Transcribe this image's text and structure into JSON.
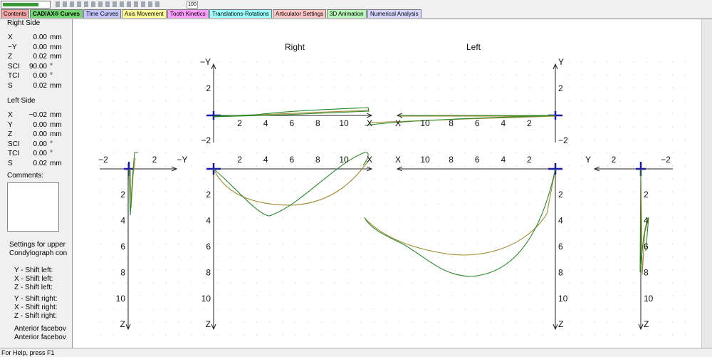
{
  "toolbar": {
    "zoom": "100"
  },
  "tabs": [
    "Contents",
    "CADIAX® Curves",
    "Time Curves",
    "Axis Movement",
    "Tooth Kinetics",
    "Translations-Rotations",
    "Articulator Settings",
    "3D Animation",
    "Numerical Analysis"
  ],
  "right_side": {
    "title": "Right Side",
    "rows": [
      [
        "X",
        "0.00",
        "mm"
      ],
      [
        "−Y",
        "0.00",
        "mm"
      ],
      [
        "Z",
        "0.02",
        "mm"
      ],
      [
        "SCI",
        "90.00",
        "°"
      ],
      [
        "TCI",
        "0.00",
        "°"
      ],
      [
        "S",
        "0.02",
        "mm"
      ]
    ]
  },
  "left_side": {
    "title": "Left Side",
    "rows": [
      [
        "X",
        "−0.02",
        "mm"
      ],
      [
        "Y",
        "0.00",
        "mm"
      ],
      [
        "Z",
        "0.00",
        "mm"
      ],
      [
        "SCI",
        "0.00",
        "°"
      ],
      [
        "TCI",
        "0.00",
        "°"
      ],
      [
        "S",
        "0.02",
        "mm"
      ]
    ]
  },
  "comments_label": "Comments:",
  "settings": {
    "heading": [
      "Settings for upper",
      "Condylograph con"
    ],
    "lines": [
      "Y - Shift left:",
      "X - Shift left:",
      "Z - Shift left:",
      "Y - Shift right:",
      "X - Shift right:",
      "Z - Shift right:",
      "Anterior facebov",
      "Anterior facebov"
    ]
  },
  "plots": {
    "titles": [
      "Right",
      "Left"
    ],
    "right_top": {
      "x_ticks": [
        "2",
        "4",
        "6",
        "8",
        "10"
      ],
      "x_label": "X",
      "y_ticks": [
        "2",
        "−2"
      ],
      "y_label": "−Y"
    },
    "left_top": {
      "x_ticks": [
        "2",
        "4",
        "6",
        "8",
        "10"
      ],
      "x_label": "X",
      "y_ticks": [
        "2",
        "−2"
      ],
      "y_label": "Y"
    },
    "right_main": {
      "x_ticks": [
        "2",
        "4",
        "6",
        "8",
        "10"
      ],
      "x_label": "X",
      "y_ticks": [
        "2",
        "4",
        "6",
        "8",
        "10"
      ],
      "y_label": "Z"
    },
    "left_main": {
      "x_ticks": [
        "2",
        "4",
        "6",
        "8",
        "10"
      ],
      "x_label": "X",
      "y_ticks": [
        "2",
        "4",
        "6",
        "8",
        "10"
      ],
      "y_label": "Z"
    },
    "side_right": {
      "x_ticks": [
        "−2",
        "2"
      ],
      "x_label": "−Y",
      "y_ticks": [
        "2",
        "4",
        "6",
        "8",
        "10"
      ],
      "y_label": "Z"
    },
    "side_left": {
      "x_ticks": [
        "2",
        "−2"
      ],
      "x_label": "Y",
      "y_ticks": [
        "2",
        "4",
        "6",
        "8",
        "10"
      ],
      "y_label": "Z"
    }
  },
  "status": "For Help, press F1"
}
